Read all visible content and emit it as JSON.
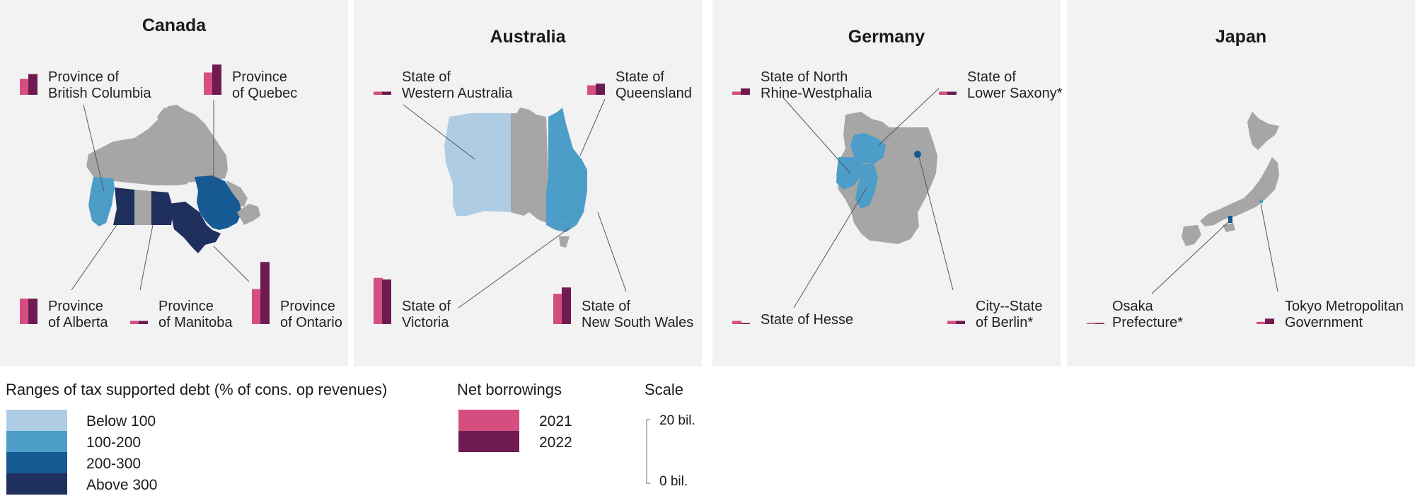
{
  "colors": {
    "below_100": "#aecce4",
    "r100_200": "#4d9dc9",
    "r200_300": "#165a93",
    "above_300": "#1f2f5e",
    "other_region": "#a6a6a6",
    "y2021": "#d44f80",
    "y2022": "#6f1b52",
    "panel_bg": "#f2f2f2"
  },
  "scale_max_bil": 20,
  "panels": [
    {
      "title": "Canada",
      "regions": [
        {
          "line1": "Province of",
          "line2": "British Columbia",
          "net_2021": 5,
          "net_2022": 6.5
        },
        {
          "line1": "Province",
          "line2": "of Quebec",
          "net_2021": 7,
          "net_2022": 9.5
        },
        {
          "line1": "Province",
          "line2": "of Alberta",
          "net_2021": 8,
          "net_2022": 8
        },
        {
          "line1": "Province",
          "line2": "of Manitoba",
          "net_2021": 1,
          "net_2022": 1
        },
        {
          "line1": "Province",
          "line2": "of Ontario",
          "net_2021": 11,
          "net_2022": 19.5
        }
      ]
    },
    {
      "title": "Australia",
      "regions": [
        {
          "line1": "State of",
          "line2": "Western Australia",
          "net_2021": 1,
          "net_2022": 1
        },
        {
          "line1": "State of",
          "line2": "Queensland",
          "net_2021": 3,
          "net_2022": 3.5
        },
        {
          "line1": "State of",
          "line2": "Victoria",
          "net_2021": 14.5,
          "net_2022": 14
        },
        {
          "line1": "State of",
          "line2": "New South Wales",
          "net_2021": 9.5,
          "net_2022": 11.5
        }
      ]
    },
    {
      "title": "Germany",
      "regions": [
        {
          "line1": "State of North",
          "line2": "Rhine-Westphalia",
          "net_2021": 1,
          "net_2022": 2
        },
        {
          "line1": "State of",
          "line2": "Lower Saxony*",
          "net_2021": 1,
          "net_2022": 1
        },
        {
          "line1": "State of Hesse",
          "line2": "",
          "net_2021": 1,
          "net_2022": 0.3
        },
        {
          "line1": "City--State",
          "line2": "of Berlin*",
          "net_2021": 1,
          "net_2022": 1
        }
      ]
    },
    {
      "title": "Japan",
      "regions": [
        {
          "line1": "Osaka",
          "line2": "Prefecture*",
          "net_2021": 0.3,
          "net_2022": 0.3
        },
        {
          "line1": "Tokyo Metropolitan",
          "line2": "Government",
          "net_2021": 0.7,
          "net_2022": 1.7
        }
      ]
    }
  ],
  "legend": {
    "ranges_title": "Ranges of tax supported debt (% of cons. op revenues)",
    "ranges": [
      "Below 100",
      "100-200",
      "200-300",
      "Above 300"
    ],
    "net_title": "Net borrowings",
    "years": [
      "2021",
      "2022"
    ],
    "scale_title": "Scale",
    "scale_top": "20 bil.",
    "scale_bottom": "0 bil."
  }
}
